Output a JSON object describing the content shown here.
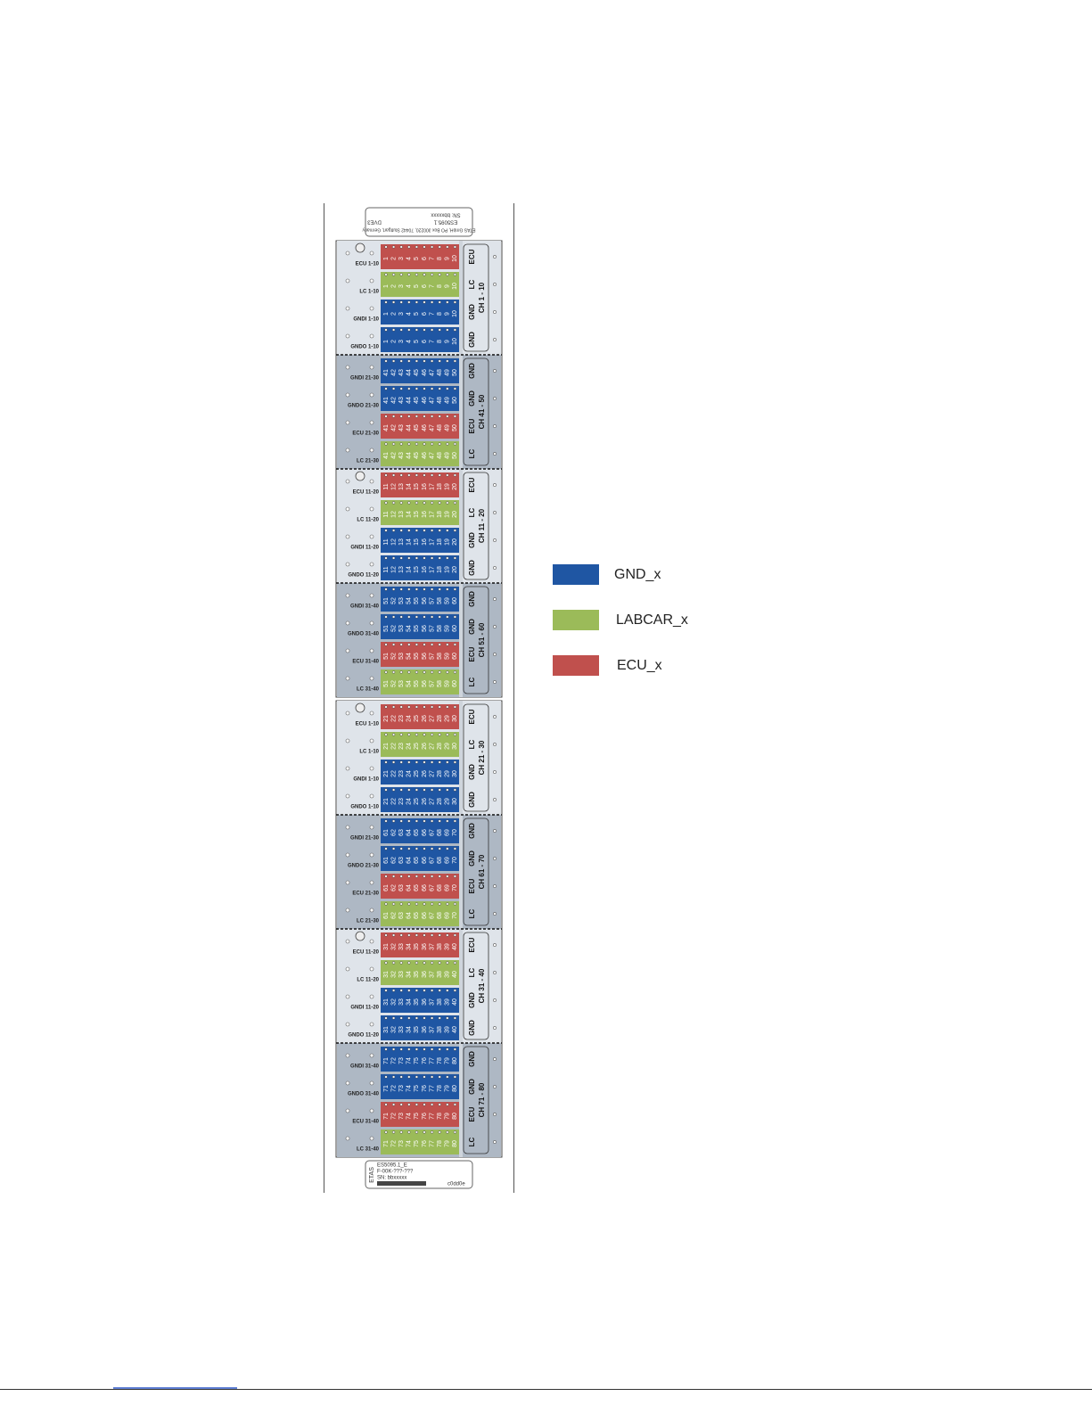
{
  "top_label": {
    "company": "ETAS GmbH, PO Box 300220, 70442 Stuttgart, Germany",
    "model": "ES5095.1",
    "serial": "SN: bbxxxxx",
    "code": "DVE3"
  },
  "bottom_label": {
    "brand": "ETAS",
    "model": "ES5095.1_E",
    "part": "F-00K-???-???",
    "serial": "SN: bbxxxxx",
    "code": "c0dd0e"
  },
  "sections": [
    {
      "channel": "CH 1 - 10",
      "pins": [
        1,
        2,
        3,
        4,
        5,
        6,
        7,
        8,
        9,
        10
      ],
      "shade": "#dfe4ea",
      "rows": [
        {
          "label": "ECU",
          "side": "ECU 1-10",
          "color": "#c0504d"
        },
        {
          "label": "LC",
          "side": "LC 1-10",
          "color": "#9bbb59"
        },
        {
          "label": "GND",
          "side": "GNDI 1-10",
          "color": "#1f56a3"
        },
        {
          "label": "GND",
          "side": "GNDO 1-10",
          "color": "#1f56a3"
        }
      ]
    },
    {
      "channel": "CH 41 - 50",
      "pins": [
        41,
        42,
        43,
        44,
        45,
        46,
        47,
        48,
        49,
        50
      ],
      "shade": "#aeb8c4",
      "rows": [
        {
          "label": "GND",
          "side": "GNDI 21-30",
          "color": "#1f56a3"
        },
        {
          "label": "GND",
          "side": "GNDO 21-30",
          "color": "#1f56a3"
        },
        {
          "label": "ECU",
          "side": "ECU 21-30",
          "color": "#c0504d"
        },
        {
          "label": "LC",
          "side": "LC 21-30",
          "color": "#9bbb59"
        }
      ]
    },
    {
      "channel": "CH 11 - 20",
      "pins": [
        11,
        12,
        13,
        14,
        15,
        16,
        17,
        18,
        19,
        20
      ],
      "shade": "#dfe4ea",
      "rows": [
        {
          "label": "ECU",
          "side": "ECU 11-20",
          "color": "#c0504d"
        },
        {
          "label": "LC",
          "side": "LC 11-20",
          "color": "#9bbb59"
        },
        {
          "label": "GND",
          "side": "GNDI 11-20",
          "color": "#1f56a3"
        },
        {
          "label": "GND",
          "side": "GNDO 11-20",
          "color": "#1f56a3"
        }
      ]
    },
    {
      "channel": "CH 51 - 60",
      "pins": [
        51,
        52,
        53,
        54,
        55,
        56,
        57,
        58,
        59,
        60
      ],
      "shade": "#aeb8c4",
      "rows": [
        {
          "label": "GND",
          "side": "GNDI 31-40",
          "color": "#1f56a3"
        },
        {
          "label": "GND",
          "side": "GNDO 31-40",
          "color": "#1f56a3"
        },
        {
          "label": "ECU",
          "side": "ECU 31-40",
          "color": "#c0504d"
        },
        {
          "label": "LC",
          "side": "LC 31-40",
          "color": "#9bbb59"
        }
      ]
    },
    {
      "channel": "CH 21 - 30",
      "pins": [
        21,
        22,
        23,
        24,
        25,
        26,
        27,
        28,
        29,
        30
      ],
      "shade": "#dfe4ea",
      "rows": [
        {
          "label": "ECU",
          "side": "ECU 1-10",
          "color": "#c0504d"
        },
        {
          "label": "LC",
          "side": "LC 1-10",
          "color": "#9bbb59"
        },
        {
          "label": "GND",
          "side": "GNDI 1-10",
          "color": "#1f56a3"
        },
        {
          "label": "GND",
          "side": "GNDO 1-10",
          "color": "#1f56a3"
        }
      ]
    },
    {
      "channel": "CH 61 - 70",
      "pins": [
        61,
        62,
        63,
        64,
        65,
        66,
        67,
        68,
        69,
        70
      ],
      "shade": "#aeb8c4",
      "rows": [
        {
          "label": "GND",
          "side": "GNDI 21-30",
          "color": "#1f56a3"
        },
        {
          "label": "GND",
          "side": "GNDO 21-30",
          "color": "#1f56a3"
        },
        {
          "label": "ECU",
          "side": "ECU 21-30",
          "color": "#c0504d"
        },
        {
          "label": "LC",
          "side": "LC 21-30",
          "color": "#9bbb59"
        }
      ]
    },
    {
      "channel": "CH 31 - 40",
      "pins": [
        31,
        32,
        33,
        34,
        35,
        36,
        37,
        38,
        39,
        40
      ],
      "shade": "#dfe4ea",
      "rows": [
        {
          "label": "ECU",
          "side": "ECU 11-20",
          "color": "#c0504d"
        },
        {
          "label": "LC",
          "side": "LC 11-20",
          "color": "#9bbb59"
        },
        {
          "label": "GND",
          "side": "GNDI 11-20",
          "color": "#1f56a3"
        },
        {
          "label": "GND",
          "side": "GNDO 11-20",
          "color": "#1f56a3"
        }
      ]
    },
    {
      "channel": "CH 71 - 80",
      "pins": [
        71,
        72,
        73,
        74,
        75,
        76,
        77,
        78,
        79,
        80
      ],
      "shade": "#aeb8c4",
      "rows": [
        {
          "label": "GND",
          "side": "GNDI 31-40",
          "color": "#1f56a3"
        },
        {
          "label": "GND",
          "side": "GNDO 31-40",
          "color": "#1f56a3"
        },
        {
          "label": "ECU",
          "side": "ECU 31-40",
          "color": "#c0504d"
        },
        {
          "label": "LC",
          "side": "LC 31-40",
          "color": "#9bbb59"
        }
      ]
    }
  ],
  "legend": [
    {
      "label": "GND_x",
      "color": "#1f56a3"
    },
    {
      "label": "LABCAR_x",
      "color": "#9bbb59"
    },
    {
      "label": "ECU_x",
      "color": "#c0504d"
    }
  ]
}
